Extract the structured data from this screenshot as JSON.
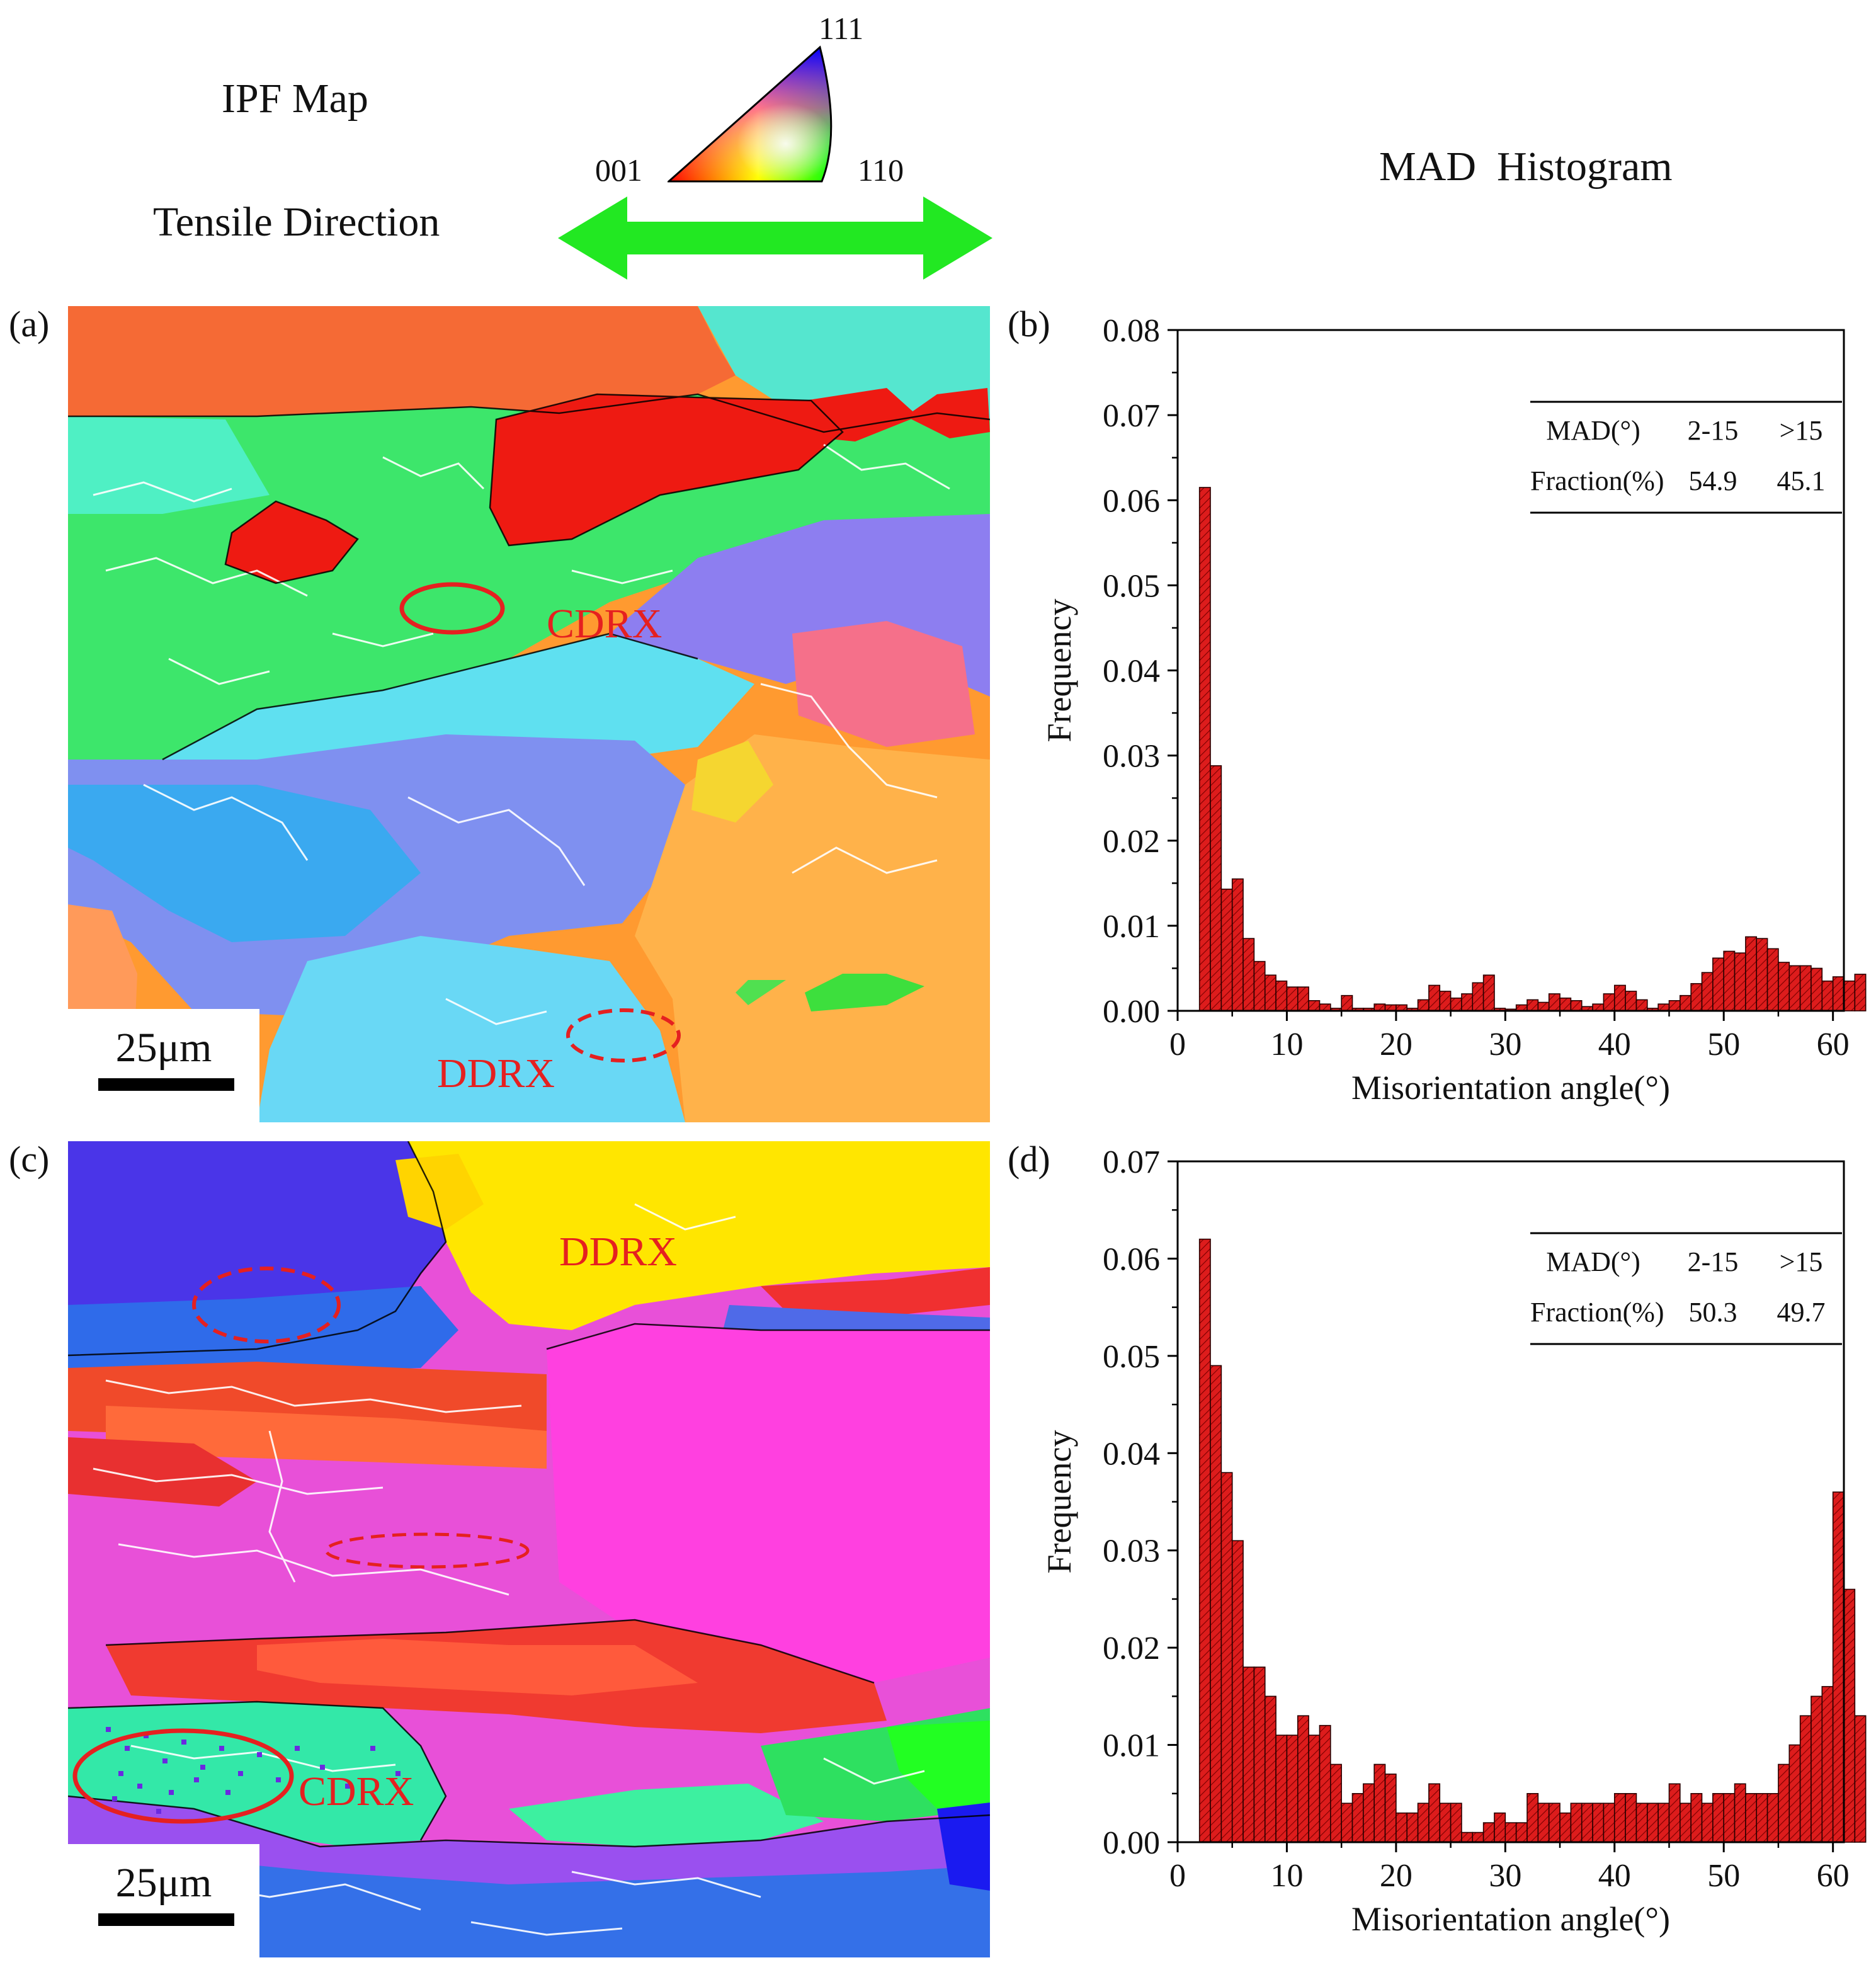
{
  "header": {
    "ipf_title": "IPF Map",
    "tensile_label": "Tensile Direction",
    "mad_title": "MAD  Histogram",
    "triangle": {
      "top": "111",
      "left": "001",
      "right": "110"
    },
    "arrow_color": "#22e822"
  },
  "panels": {
    "a": {
      "label": "(a)",
      "scale": "25μm",
      "anno1": "CDRX",
      "anno2": "DDRX"
    },
    "b": {
      "label": "(b)"
    },
    "c": {
      "label": "(c)",
      "scale": "25μm",
      "anno1": "DDRX",
      "anno2": "CDRX"
    },
    "d": {
      "label": "(d)"
    }
  },
  "colors": {
    "bar": "#dd1c1c",
    "annotation": "#e52020"
  },
  "chart_data": [
    {
      "panel": "b",
      "type": "bar",
      "xlabel": "Misorientation angle(°)",
      "ylabel": "Frequency",
      "xlim": [
        0,
        61
      ],
      "ylim": [
        0,
        0.08
      ],
      "xticks": [
        "0",
        "10",
        "20",
        "30",
        "40",
        "50",
        "60"
      ],
      "yticks": [
        "0.00",
        "0.01",
        "0.02",
        "0.03",
        "0.04",
        "0.05",
        "0.06",
        "0.07",
        "0.08"
      ],
      "bin_width": 1,
      "bin_start": 2,
      "values": [
        0.0615,
        0.0288,
        0.0143,
        0.0155,
        0.0085,
        0.0058,
        0.0042,
        0.0035,
        0.0028,
        0.0028,
        0.0012,
        0.0008,
        0.0003,
        0.0018,
        0.0003,
        0.0003,
        0.0008,
        0.0007,
        0.0007,
        0.0003,
        0.0013,
        0.003,
        0.0023,
        0.0015,
        0.002,
        0.0033,
        0.0042,
        0.0003,
        0.0002,
        0.0007,
        0.0013,
        0.001,
        0.002,
        0.0015,
        0.0012,
        0.0005,
        0.0008,
        0.002,
        0.003,
        0.0023,
        0.0013,
        0.0003,
        0.0008,
        0.0012,
        0.0018,
        0.0032,
        0.0045,
        0.0062,
        0.007,
        0.0068,
        0.0087,
        0.0085,
        0.0073,
        0.0057,
        0.0053,
        0.0053,
        0.005,
        0.0035,
        0.004,
        0.0035,
        0.0043
      ],
      "table": {
        "header": [
          "MAD(°)",
          "2-15",
          ">15"
        ],
        "row": [
          "Fraction(%)",
          "54.9",
          "45.1"
        ]
      }
    },
    {
      "panel": "d",
      "type": "bar",
      "xlabel": "Misorientation angle(°)",
      "ylabel": "Frequency",
      "xlim": [
        0,
        61
      ],
      "ylim": [
        0,
        0.07
      ],
      "xticks": [
        "0",
        "10",
        "20",
        "30",
        "40",
        "50",
        "60"
      ],
      "yticks": [
        "0.00",
        "0.01",
        "0.02",
        "0.03",
        "0.04",
        "0.05",
        "0.06",
        "0.07"
      ],
      "bin_width": 1,
      "bin_start": 2,
      "values": [
        0.062,
        0.049,
        0.038,
        0.031,
        0.018,
        0.018,
        0.015,
        0.011,
        0.011,
        0.013,
        0.011,
        0.012,
        0.008,
        0.004,
        0.005,
        0.006,
        0.008,
        0.007,
        0.003,
        0.003,
        0.004,
        0.006,
        0.004,
        0.004,
        0.001,
        0.001,
        0.002,
        0.003,
        0.002,
        0.002,
        0.005,
        0.004,
        0.004,
        0.003,
        0.004,
        0.004,
        0.004,
        0.004,
        0.005,
        0.005,
        0.004,
        0.004,
        0.004,
        0.006,
        0.004,
        0.005,
        0.004,
        0.005,
        0.005,
        0.006,
        0.005,
        0.005,
        0.005,
        0.008,
        0.01,
        0.013,
        0.015,
        0.016,
        0.036,
        0.026,
        0.013
      ],
      "table": {
        "header": [
          "MAD(°)",
          "2-15",
          ">15"
        ],
        "row": [
          "Fraction(%)",
          "50.3",
          "49.7"
        ]
      }
    }
  ]
}
